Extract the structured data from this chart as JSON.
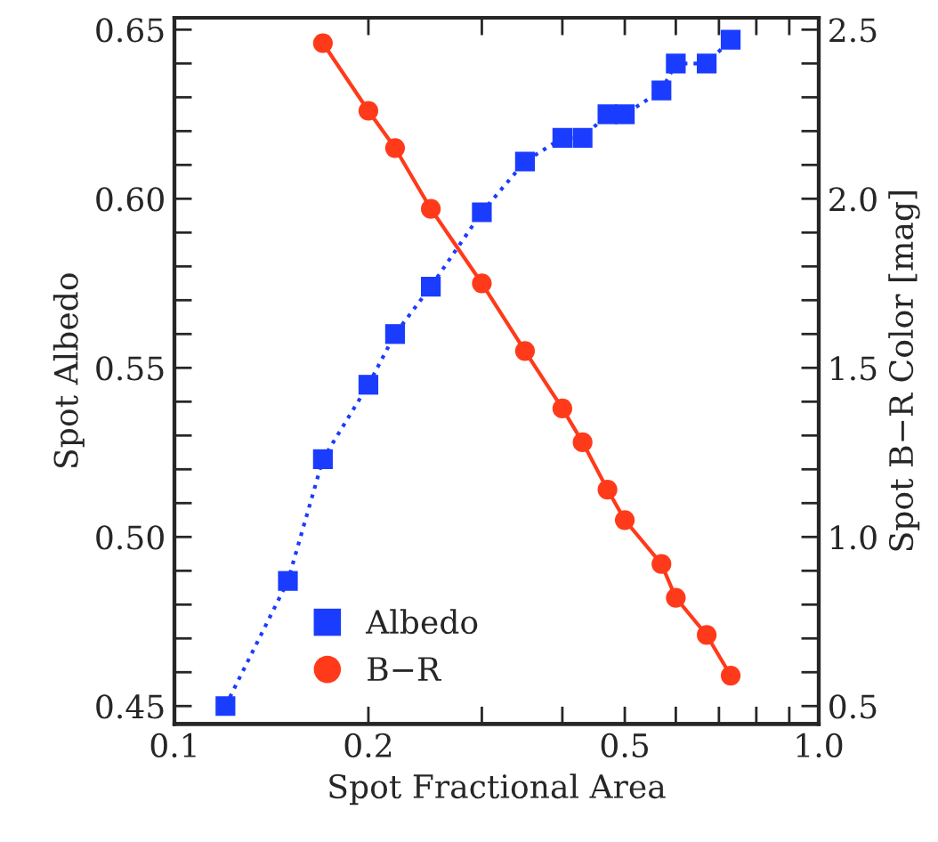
{
  "chart_data": {
    "type": "line",
    "xlabel": "Spot Fractional Area",
    "ylabel": "Spot Albedo",
    "y2label": "Spot B−R Color [mag]",
    "log": "x",
    "series": [
      {
        "name": "Albedo",
        "color": "#1a3cff",
        "marker": "square",
        "line_style": "dotted",
        "axis": "y",
        "x": [
          0.12,
          0.15,
          0.17,
          0.2,
          0.22,
          0.25,
          0.3,
          0.35,
          0.4,
          0.43,
          0.47,
          0.5,
          0.57,
          0.6,
          0.67,
          0.73
        ],
        "values": [
          0.45,
          0.487,
          0.523,
          0.545,
          0.56,
          0.574,
          0.596,
          0.611,
          0.618,
          0.618,
          0.625,
          0.625,
          0.632,
          0.64,
          0.64,
          0.647
        ]
      },
      {
        "name": "B−R",
        "color": "#ff3a1a",
        "marker": "circle",
        "line_style": "solid",
        "axis": "y2",
        "x": [
          0.17,
          0.2,
          0.22,
          0.25,
          0.3,
          0.35,
          0.4,
          0.43,
          0.47,
          0.5,
          0.57,
          0.6,
          0.67,
          0.73
        ],
        "values": [
          2.46,
          2.26,
          2.15,
          1.97,
          1.75,
          1.55,
          1.38,
          1.28,
          1.14,
          1.05,
          0.92,
          0.82,
          0.71,
          0.59
        ]
      }
    ],
    "xlim": [
      0.1,
      1.0
    ],
    "xticks": [
      {
        "value": 0.1,
        "label": "0.1"
      },
      {
        "value": 0.2,
        "label": "0.2"
      },
      {
        "value": 0.3,
        "label": null
      },
      {
        "value": 0.4,
        "label": null
      },
      {
        "value": 0.5,
        "label": "0.5"
      },
      {
        "value": 0.6,
        "label": null
      },
      {
        "value": 0.7,
        "label": null
      },
      {
        "value": 0.8,
        "label": null
      },
      {
        "value": 0.9,
        "label": null
      },
      {
        "value": 1.0,
        "label": "1.0"
      }
    ],
    "ylim": [
      0.4447,
      0.6535
    ],
    "yticks": [
      {
        "value": 0.45,
        "label": "0.45"
      },
      {
        "value": 0.46,
        "label": null
      },
      {
        "value": 0.47,
        "label": null
      },
      {
        "value": 0.48,
        "label": null
      },
      {
        "value": 0.49,
        "label": null
      },
      {
        "value": 0.5,
        "label": "0.50"
      },
      {
        "value": 0.51,
        "label": null
      },
      {
        "value": 0.52,
        "label": null
      },
      {
        "value": 0.53,
        "label": null
      },
      {
        "value": 0.54,
        "label": null
      },
      {
        "value": 0.55,
        "label": "0.55"
      },
      {
        "value": 0.56,
        "label": null
      },
      {
        "value": 0.57,
        "label": null
      },
      {
        "value": 0.58,
        "label": null
      },
      {
        "value": 0.59,
        "label": null
      },
      {
        "value": 0.6,
        "label": "0.60"
      },
      {
        "value": 0.61,
        "label": null
      },
      {
        "value": 0.62,
        "label": null
      },
      {
        "value": 0.63,
        "label": null
      },
      {
        "value": 0.64,
        "label": null
      },
      {
        "value": 0.65,
        "label": "0.65"
      }
    ],
    "y2lim": [
      0.447,
      2.535
    ],
    "y2ticks": [
      {
        "value": 0.5,
        "label": "0.5"
      },
      {
        "value": 0.6,
        "label": null
      },
      {
        "value": 0.7,
        "label": null
      },
      {
        "value": 0.8,
        "label": null
      },
      {
        "value": 0.9,
        "label": null
      },
      {
        "value": 1.0,
        "label": "1.0"
      },
      {
        "value": 1.1,
        "label": null
      },
      {
        "value": 1.2,
        "label": null
      },
      {
        "value": 1.3,
        "label": null
      },
      {
        "value": 1.4,
        "label": null
      },
      {
        "value": 1.5,
        "label": "1.5"
      },
      {
        "value": 1.6,
        "label": null
      },
      {
        "value": 1.7,
        "label": null
      },
      {
        "value": 1.8,
        "label": null
      },
      {
        "value": 1.9,
        "label": null
      },
      {
        "value": 2.0,
        "label": "2.0"
      },
      {
        "value": 2.1,
        "label": null
      },
      {
        "value": 2.2,
        "label": null
      },
      {
        "value": 2.3,
        "label": null
      },
      {
        "value": 2.4,
        "label": null
      },
      {
        "value": 2.5,
        "label": "2.5"
      }
    ],
    "grid": false,
    "legend": "bottom"
  }
}
